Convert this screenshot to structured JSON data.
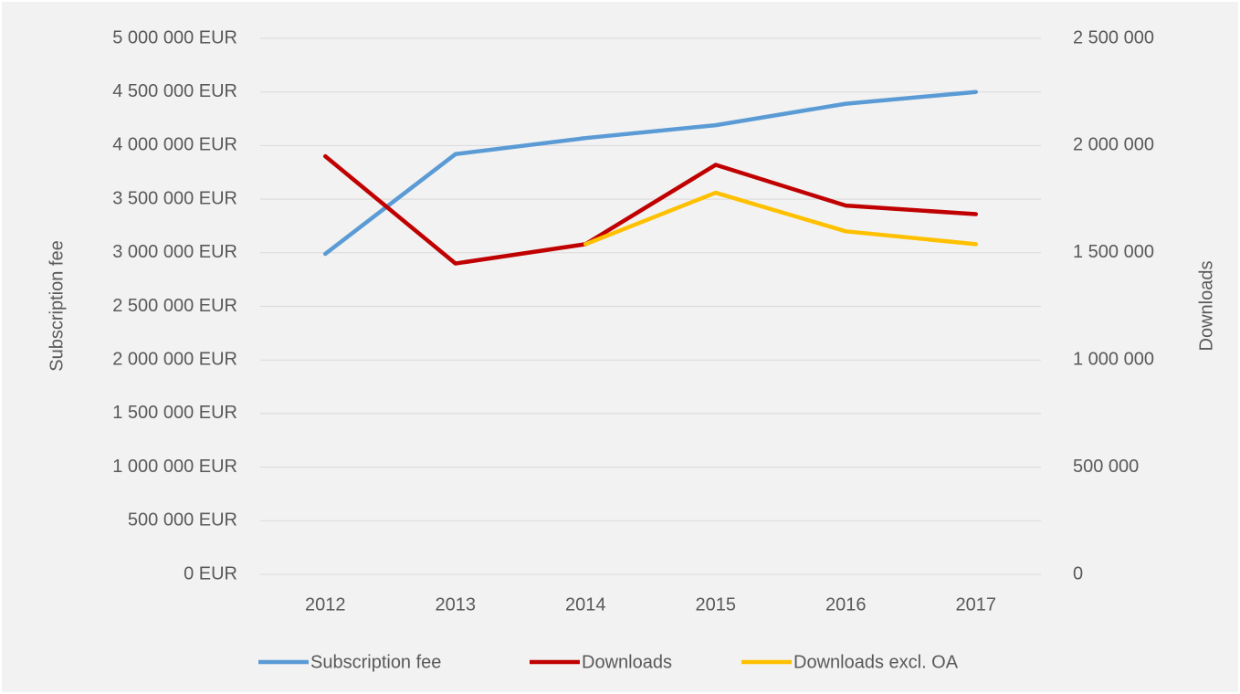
{
  "chart_data": {
    "type": "line",
    "categories": [
      "2012",
      "2013",
      "2014",
      "2015",
      "2016",
      "2017"
    ],
    "series": [
      {
        "name": "Subscription fee",
        "color": "#5b9bd5",
        "values": [
          2990000,
          3920000,
          4070000,
          4190000,
          4390000,
          4500000
        ]
      },
      {
        "name": "Downloads",
        "color": "#c00000",
        "axis": "y2",
        "values": [
          1950000,
          1450000,
          1540000,
          1910000,
          1720000,
          1680000
        ]
      },
      {
        "name": "Downloads excl. OA",
        "color": "#ffc000",
        "axis": "y2",
        "values": [
          null,
          null,
          1540000,
          1780000,
          1600000,
          1540000
        ]
      }
    ],
    "ylabel": "Subscription fee",
    "y2label": "Downloads",
    "ylim": [
      0,
      5000000
    ],
    "yticks": [
      {
        "value": 0,
        "label": "0 EUR"
      },
      {
        "value": 500000,
        "label": "500 000 EUR"
      },
      {
        "value": 1000000,
        "label": "1 000 000 EUR"
      },
      {
        "value": 1500000,
        "label": "1 500 000 EUR"
      },
      {
        "value": 2000000,
        "label": "2 000 000 EUR"
      },
      {
        "value": 2500000,
        "label": "2 500 000 EUR"
      },
      {
        "value": 3000000,
        "label": "3 000 000 EUR"
      },
      {
        "value": 3500000,
        "label": "3 500 000 EUR"
      },
      {
        "value": 4000000,
        "label": "4 000 000 EUR"
      },
      {
        "value": 4500000,
        "label": "4 500 000 EUR"
      },
      {
        "value": 5000000,
        "label": "5 000 000 EUR"
      }
    ],
    "y2lim": [
      0,
      2500000
    ],
    "y2ticks": [
      0,
      {
        "value": 500000,
        "label": "500 000"
      },
      {
        "value": 1000000,
        "label": "1 000 000"
      },
      {
        "value": 1500000,
        "label": "1 500 000"
      },
      {
        "value": 2000000,
        "label": "2 000 000"
      },
      {
        "value": 2500000,
        "label": "2 500 000"
      }
    ],
    "grid": true,
    "legend": "bottom"
  }
}
